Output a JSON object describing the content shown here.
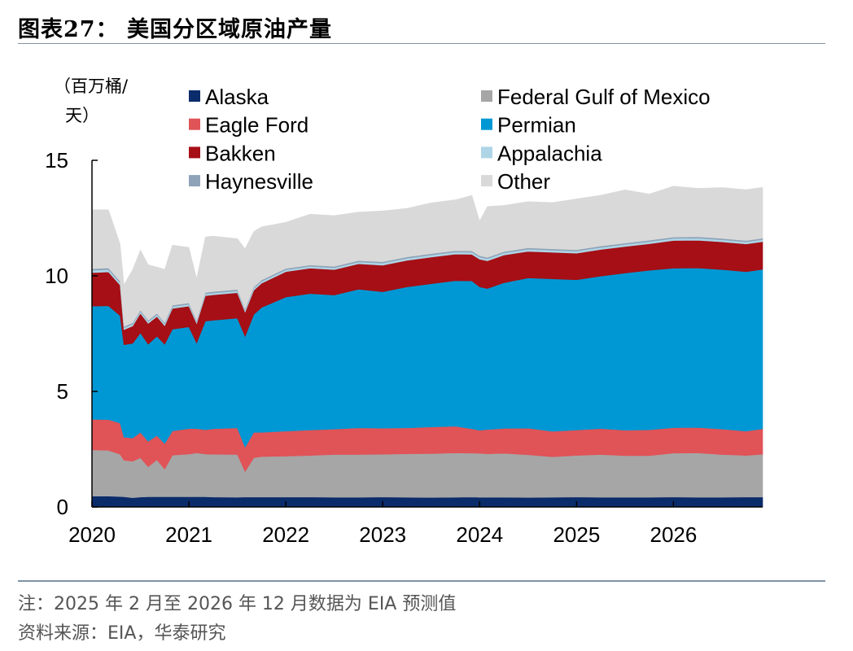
{
  "header": {
    "title": "图表27：  美国分区域原油产量"
  },
  "footer": {
    "note": "注：2025 年 2 月至 2026 年 12 月数据为 EIA 预测值",
    "source": "资料来源：EIA，华泰研究"
  },
  "chart_data": {
    "type": "area",
    "stacked": true,
    "unit_label_line1": "（百万桶/",
    "unit_label_line2": "天）",
    "ylim": [
      0,
      15
    ],
    "xlim": [
      2020.0,
      2026.92
    ],
    "yticks": [
      "0",
      "5",
      "10",
      "15"
    ],
    "xticks": [
      "2020",
      "2021",
      "2022",
      "2023",
      "2024",
      "2025",
      "2026"
    ],
    "x": [
      2020.0,
      2020.17,
      2020.29,
      2020.33,
      2020.42,
      2020.5,
      2020.58,
      2020.67,
      2020.75,
      2020.83,
      2021.0,
      2021.08,
      2021.17,
      2021.25,
      2021.5,
      2021.58,
      2021.67,
      2021.75,
      2022.0,
      2022.25,
      2022.5,
      2022.75,
      2023.0,
      2023.25,
      2023.5,
      2023.75,
      2023.92,
      2024.0,
      2024.08,
      2024.25,
      2024.5,
      2024.75,
      2025.0,
      2025.25,
      2025.5,
      2025.75,
      2026.0,
      2026.25,
      2026.5,
      2026.75,
      2026.92
    ],
    "series": [
      {
        "name": "Alaska",
        "color": "#0b2c6b",
        "values": [
          0.47,
          0.47,
          0.45,
          0.44,
          0.4,
          0.43,
          0.44,
          0.44,
          0.44,
          0.44,
          0.44,
          0.44,
          0.44,
          0.43,
          0.42,
          0.43,
          0.43,
          0.43,
          0.43,
          0.43,
          0.42,
          0.42,
          0.43,
          0.42,
          0.41,
          0.42,
          0.43,
          0.42,
          0.42,
          0.42,
          0.41,
          0.42,
          0.43,
          0.42,
          0.42,
          0.42,
          0.43,
          0.42,
          0.42,
          0.43,
          0.43
        ]
      },
      {
        "name": "Federal Gulf of Mexico",
        "color": "#a6a6a6",
        "values": [
          2.0,
          1.98,
          1.83,
          1.58,
          1.58,
          1.7,
          1.3,
          1.6,
          1.2,
          1.8,
          1.85,
          1.9,
          1.85,
          1.85,
          1.85,
          1.1,
          1.7,
          1.75,
          1.77,
          1.8,
          1.85,
          1.85,
          1.85,
          1.88,
          1.9,
          1.92,
          1.9,
          1.9,
          1.88,
          1.9,
          1.85,
          1.75,
          1.8,
          1.85,
          1.8,
          1.8,
          1.9,
          1.92,
          1.85,
          1.8,
          1.85
        ]
      },
      {
        "name": "Eagle Ford",
        "color": "#e05357",
        "values": [
          1.32,
          1.33,
          1.35,
          1.0,
          1.0,
          1.1,
          1.1,
          1.05,
          1.1,
          1.05,
          1.1,
          1.05,
          1.05,
          1.1,
          1.15,
          1.05,
          1.1,
          1.05,
          1.08,
          1.1,
          1.1,
          1.15,
          1.13,
          1.12,
          1.15,
          1.15,
          1.05,
          1.0,
          1.05,
          1.08,
          1.15,
          1.1,
          1.1,
          1.12,
          1.1,
          1.12,
          1.1,
          1.1,
          1.1,
          1.05,
          1.1
        ]
      },
      {
        "name": "Permian",
        "color": "#0098d4",
        "values": [
          4.9,
          4.92,
          4.65,
          4.0,
          4.1,
          4.3,
          4.2,
          4.3,
          4.3,
          4.4,
          4.4,
          3.7,
          4.7,
          4.7,
          4.75,
          4.8,
          5.1,
          5.4,
          5.8,
          5.9,
          5.8,
          6.0,
          5.9,
          6.1,
          6.2,
          6.3,
          6.4,
          6.2,
          6.1,
          6.3,
          6.5,
          6.6,
          6.5,
          6.6,
          6.8,
          6.9,
          6.9,
          6.9,
          6.9,
          6.9,
          6.9
        ]
      },
      {
        "name": "Bakken",
        "color": "#a50f15",
        "values": [
          1.45,
          1.47,
          1.32,
          0.65,
          0.75,
          0.85,
          0.9,
          0.85,
          0.8,
          0.9,
          0.9,
          0.85,
          1.1,
          1.1,
          1.1,
          1.05,
          1.05,
          1.05,
          1.1,
          1.1,
          1.1,
          1.1,
          1.15,
          1.15,
          1.15,
          1.15,
          1.15,
          1.2,
          1.2,
          1.2,
          1.15,
          1.15,
          1.15,
          1.15,
          1.15,
          1.15,
          1.2,
          1.2,
          1.2,
          1.2,
          1.2
        ]
      },
      {
        "name": "Appalachia",
        "color": "#aed5e6",
        "values": [
          0.1,
          0.1,
          0.1,
          0.08,
          0.08,
          0.08,
          0.08,
          0.08,
          0.08,
          0.08,
          0.08,
          0.08,
          0.08,
          0.08,
          0.08,
          0.08,
          0.08,
          0.08,
          0.08,
          0.08,
          0.08,
          0.08,
          0.09,
          0.09,
          0.09,
          0.09,
          0.09,
          0.09,
          0.09,
          0.09,
          0.09,
          0.09,
          0.09,
          0.09,
          0.09,
          0.09,
          0.09,
          0.09,
          0.09,
          0.09,
          0.09
        ]
      },
      {
        "name": "Haynesville",
        "color": "#8ea3b8",
        "values": [
          0.07,
          0.07,
          0.07,
          0.06,
          0.06,
          0.06,
          0.06,
          0.06,
          0.06,
          0.06,
          0.06,
          0.06,
          0.06,
          0.06,
          0.06,
          0.06,
          0.06,
          0.06,
          0.06,
          0.06,
          0.06,
          0.06,
          0.06,
          0.06,
          0.06,
          0.06,
          0.06,
          0.06,
          0.06,
          0.06,
          0.06,
          0.06,
          0.06,
          0.06,
          0.06,
          0.06,
          0.06,
          0.06,
          0.06,
          0.06,
          0.06
        ]
      },
      {
        "name": "Other",
        "color": "#d9d9d9",
        "values": [
          2.55,
          2.52,
          1.6,
          1.8,
          2.3,
          2.6,
          2.4,
          2.0,
          2.3,
          2.6,
          2.4,
          1.8,
          2.4,
          2.4,
          2.2,
          2.6,
          2.4,
          2.3,
          2.0,
          2.2,
          2.2,
          2.1,
          2.2,
          2.1,
          2.2,
          2.2,
          2.4,
          1.5,
          2.2,
          2.0,
          2.0,
          2.0,
          2.2,
          2.2,
          2.3,
          2.0,
          2.2,
          2.1,
          2.2,
          2.2,
          2.2
        ]
      }
    ]
  }
}
